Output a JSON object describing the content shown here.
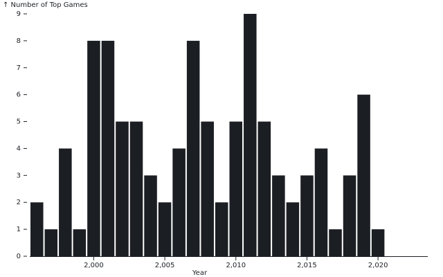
{
  "chart_data": {
    "type": "bar",
    "x": [
      1996,
      1997,
      1998,
      1999,
      2000,
      2001,
      2002,
      2003,
      2004,
      2005,
      2006,
      2007,
      2008,
      2009,
      2010,
      2011,
      2012,
      2013,
      2014,
      2015,
      2016,
      2017,
      2018,
      2019,
      2020,
      2021,
      2022,
      2023
    ],
    "values": [
      2,
      1,
      4,
      1,
      8,
      8,
      5,
      5,
      3,
      2,
      4,
      8,
      5,
      2,
      5,
      9,
      5,
      3,
      2,
      3,
      4,
      1,
      3,
      6,
      1,
      null,
      null,
      null
    ],
    "xlabel": "Year",
    "ylabel": "↑ Number of Top Games",
    "ylim": [
      0,
      9
    ],
    "y_ticks": [
      "0",
      "1",
      "2",
      "3",
      "4",
      "5",
      "6",
      "7",
      "8",
      "9"
    ],
    "x_ticks": [
      {
        "value": 2000,
        "label": "2,000"
      },
      {
        "value": 2005,
        "label": "2,005"
      },
      {
        "value": 2010,
        "label": "2,010"
      },
      {
        "value": 2015,
        "label": "2,015"
      },
      {
        "value": 2020,
        "label": "2,020"
      }
    ],
    "bar_color": "#1b1e23"
  }
}
